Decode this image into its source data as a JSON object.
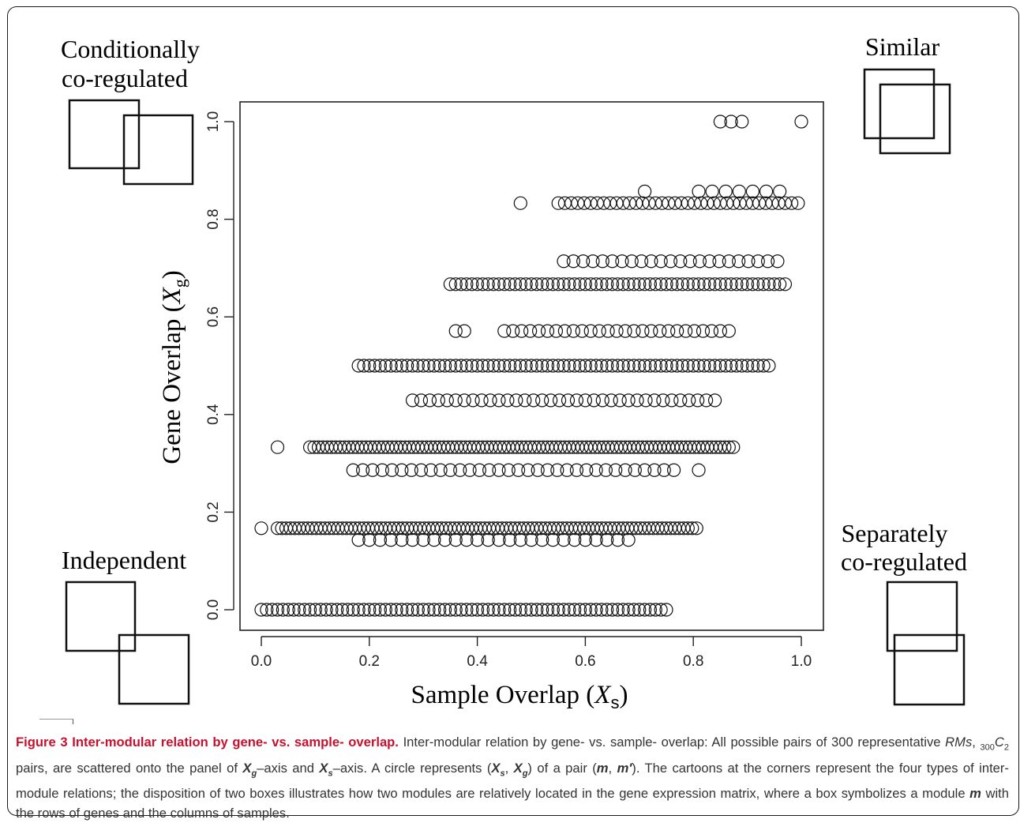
{
  "corner_labels": {
    "top_left": [
      "Conditionally",
      "co-regulated"
    ],
    "top_right": [
      "Similar"
    ],
    "bottom_left": [
      "Independent"
    ],
    "bottom_right": [
      "Separately",
      "co-regulated"
    ]
  },
  "caption": {
    "label": "Figure 3",
    "title": "Inter-modular relation by gene- vs. sample- overlap.",
    "s1": "Inter-modular relation by gene- vs. sample- overlap: All possible pairs of 300 representative",
    "rms": "RMs",
    "comma": ",",
    "sub300": "300",
    "c": "C",
    "sub2": "2",
    "s2": "pairs, are scattered onto the panel of",
    "xg_x": "X",
    "xg_g": "g",
    "s3": "–axis and",
    "xs_x": "X",
    "xs_s": "s",
    "s4": "–axis. A circle represents (",
    "p_x1": "X",
    "p_s": "s",
    "p_comma": ",",
    "p_x2": "X",
    "p_g": "g",
    "s5": ") of a pair (",
    "m1": "m",
    "s6": ",",
    "m2": "m′",
    "s7": "). The cartoons at the corners represent the four types of inter-module relations; the disposition of two boxes illustrates how two modules are relatively located in the gene expression matrix, where a box symbolizes a module",
    "m3": "m",
    "s8": "with the rows of genes and the columns of samples."
  },
  "chart_data": {
    "type": "scatter",
    "xlabel": "Sample Overlap (X s)",
    "ylabel": "Gene Overlap (X g)",
    "xlim": [
      -0.04,
      1.04
    ],
    "ylim": [
      -0.04,
      1.04
    ],
    "xticks": [
      "0.0",
      "0.2",
      "0.4",
      "0.6",
      "0.8",
      "1.0"
    ],
    "yticks": [
      "0.0",
      "0.2",
      "0.4",
      "0.6",
      "0.8",
      "1.0"
    ],
    "marker": "open-circle",
    "rows": [
      {
        "y": 1.0,
        "x_ranges": [
          [
            0.85,
            0.9
          ],
          [
            1.0,
            1.0
          ]
        ],
        "step": 0.02
      },
      {
        "y": 0.857,
        "x_ranges": [
          [
            0.71,
            0.71
          ],
          [
            0.81,
            0.97
          ]
        ],
        "step": 0.025
      },
      {
        "y": 0.833,
        "x_ranges": [
          [
            0.48,
            0.48
          ],
          [
            0.55,
            1.0
          ]
        ],
        "step": 0.012
      },
      {
        "y": 0.714,
        "x_ranges": [
          [
            0.56,
            0.97
          ]
        ],
        "step": 0.018
      },
      {
        "y": 0.667,
        "x_ranges": [
          [
            0.35,
            0.97
          ]
        ],
        "step": 0.01
      },
      {
        "y": 0.571,
        "x_ranges": [
          [
            0.36,
            0.39
          ],
          [
            0.45,
            0.87
          ]
        ],
        "step": 0.016
      },
      {
        "y": 0.5,
        "x_ranges": [
          [
            0.18,
            0.94
          ]
        ],
        "step": 0.01
      },
      {
        "y": 0.429,
        "x_ranges": [
          [
            0.28,
            0.85
          ]
        ],
        "step": 0.016
      },
      {
        "y": 0.333,
        "x_ranges": [
          [
            0.03,
            0.03
          ],
          [
            0.09,
            0.88
          ]
        ],
        "step": 0.008
      },
      {
        "y": 0.286,
        "x_ranges": [
          [
            0.17,
            0.77
          ],
          [
            0.81,
            0.81
          ]
        ],
        "step": 0.018
      },
      {
        "y": 0.167,
        "x_ranges": [
          [
            0.0,
            0.0
          ],
          [
            0.03,
            0.81
          ]
        ],
        "step": 0.008
      },
      {
        "y": 0.143,
        "x_ranges": [
          [
            0.18,
            0.68
          ]
        ],
        "step": 0.02
      },
      {
        "y": 0.0,
        "x_ranges": [
          [
            0.0,
            0.75
          ]
        ],
        "step": 0.01
      }
    ]
  }
}
